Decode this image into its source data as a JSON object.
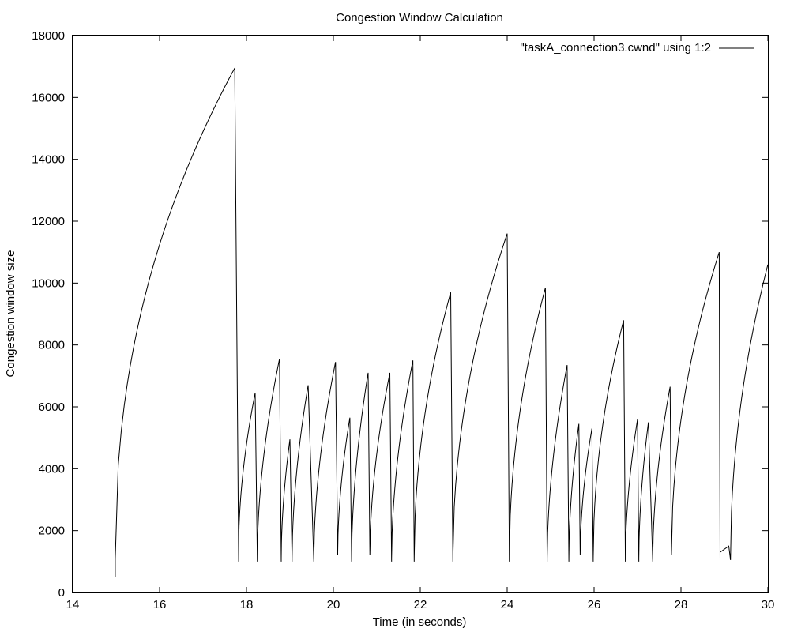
{
  "chart_data": {
    "type": "line",
    "title": "Congestion Window Calculation",
    "xlabel": "Time (in seconds)",
    "ylabel": "Congestion window size",
    "xlim": [
      14,
      30
    ],
    "ylim": [
      0,
      18000
    ],
    "x_ticks": [
      14,
      16,
      18,
      20,
      22,
      24,
      26,
      28,
      30
    ],
    "y_ticks": [
      0,
      2000,
      4000,
      6000,
      8000,
      10000,
      12000,
      14000,
      16000,
      18000
    ],
    "grid": false,
    "legend_position": "top-right",
    "series": [
      {
        "name": "\"taskA_connection3.cwnd\" using 1:2",
        "color": "#000000",
        "segments": [
          {
            "drop_to": 500,
            "start": [
              14.98,
              1100
            ],
            "end": [
              17.73,
              16950
            ],
            "curve": 0.45
          },
          {
            "drop_to": 1000,
            "start": [
              17.82,
              1500
            ],
            "end": [
              18.2,
              6450
            ],
            "curve": 0.55
          },
          {
            "drop_to": 1000,
            "start": [
              18.25,
              1200
            ],
            "end": [
              18.76,
              7550
            ],
            "curve": 0.55
          },
          {
            "drop_to": 1000,
            "start": [
              18.8,
              1100
            ],
            "end": [
              19.0,
              4950
            ],
            "curve": 0.55
          },
          {
            "drop_to": 1000,
            "start": [
              19.05,
              1100
            ],
            "end": [
              19.42,
              6700
            ],
            "curve": 0.55
          },
          {
            "drop_to": 1000,
            "start": [
              19.55,
              1100
            ],
            "end": [
              20.05,
              7450
            ],
            "curve": 0.55
          },
          {
            "drop_to": 1200,
            "start": [
              20.1,
              1300
            ],
            "end": [
              20.38,
              5650
            ],
            "curve": 0.55
          },
          {
            "drop_to": 1000,
            "start": [
              20.42,
              1100
            ],
            "end": [
              20.8,
              7100
            ],
            "curve": 0.55
          },
          {
            "drop_to": 1200,
            "start": [
              20.84,
              1200
            ],
            "end": [
              21.3,
              7100
            ],
            "curve": 0.55
          },
          {
            "drop_to": 1000,
            "start": [
              21.34,
              1100
            ],
            "end": [
              21.83,
              7500
            ],
            "curve": 0.55
          },
          {
            "drop_to": 1000,
            "start": [
              21.86,
              1100
            ],
            "end": [
              22.7,
              9700
            ],
            "curve": 0.5
          },
          {
            "drop_to": 1000,
            "start": [
              22.75,
              1100
            ],
            "end": [
              24.0,
              11600
            ],
            "curve": 0.5
          },
          {
            "drop_to": 1000,
            "start": [
              24.05,
              1100
            ],
            "end": [
              24.88,
              9850
            ],
            "curve": 0.5
          },
          {
            "drop_to": 1000,
            "start": [
              24.92,
              1100
            ],
            "end": [
              25.38,
              7350
            ],
            "curve": 0.55
          },
          {
            "drop_to": 1000,
            "start": [
              25.42,
              1100
            ],
            "end": [
              25.65,
              5450
            ],
            "curve": 0.55
          },
          {
            "drop_to": 1200,
            "start": [
              25.68,
              1200
            ],
            "end": [
              25.95,
              5300
            ],
            "curve": 0.55
          },
          {
            "drop_to": 1000,
            "start": [
              25.98,
              1100
            ],
            "end": [
              26.68,
              8800
            ],
            "curve": 0.5
          },
          {
            "drop_to": 1000,
            "start": [
              26.72,
              1100
            ],
            "end": [
              27.0,
              5600
            ],
            "curve": 0.55
          },
          {
            "drop_to": 1000,
            "start": [
              27.03,
              1100
            ],
            "end": [
              27.25,
              5500
            ],
            "curve": 0.55
          },
          {
            "drop_to": 1000,
            "start": [
              27.35,
              1100
            ],
            "end": [
              27.75,
              6650
            ],
            "curve": 0.55
          },
          {
            "drop_to": 1200,
            "start": [
              27.78,
              1200
            ],
            "end": [
              28.88,
              11000
            ],
            "curve": 0.5
          },
          {
            "drop_to": 1050,
            "start": [
              28.9,
              1300
            ],
            "end": [
              29.1,
              1500
            ],
            "curve": 0.0
          },
          {
            "drop_to": 1050,
            "start": [
              29.14,
              1100
            ],
            "end": [
              30.0,
              10600
            ],
            "curve": 0.5
          }
        ]
      }
    ]
  }
}
